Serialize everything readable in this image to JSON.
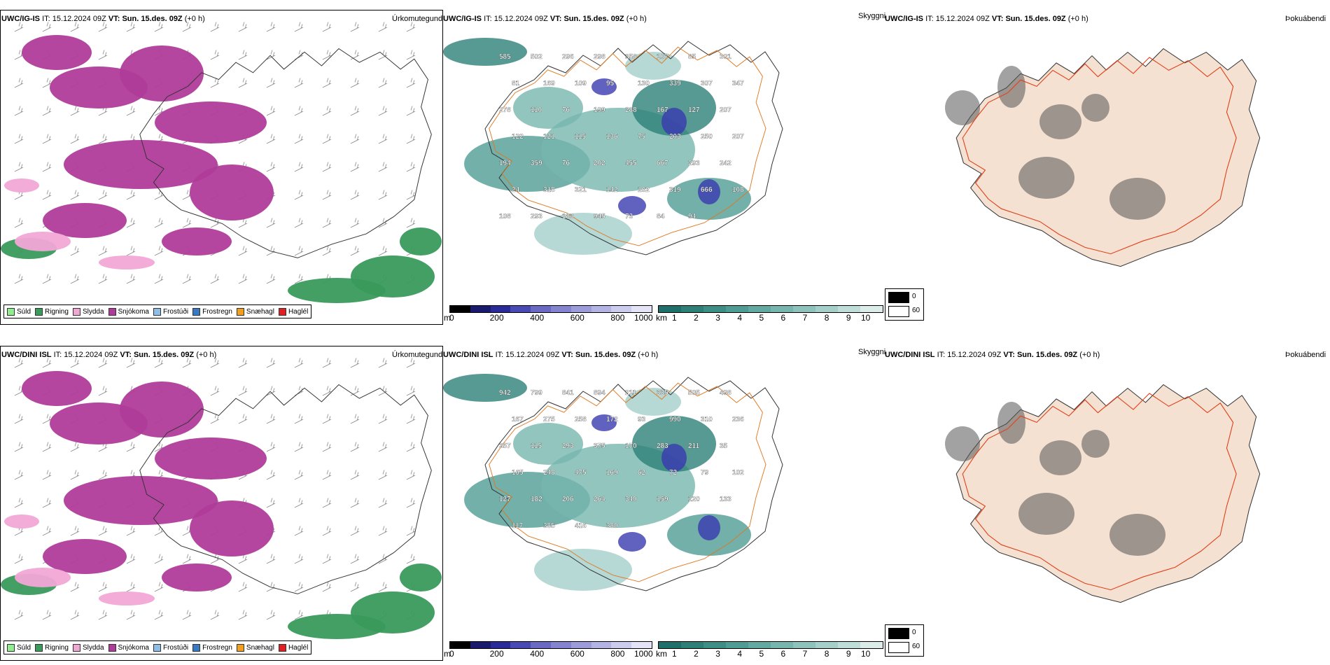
{
  "rows": [
    {
      "precip": {
        "model": "UWC/IG-IS",
        "it_label": "IT:",
        "it_value": "15.12.2024 09Z",
        "vt_label": "VT:",
        "vt_value": "Sun. 15.des. 09Z",
        "lead": "(+0 h)",
        "title": "Úrkomutegund"
      },
      "visibility": {
        "model": "UWC/IG-IS",
        "it_label": "IT:",
        "it_value": "15.12.2024 09Z",
        "vt_label": "VT:",
        "vt_value": "Sun. 15.des. 09Z",
        "lead": "(+0 h)",
        "title": "Skyggni",
        "labels": [
          "585",
          "502",
          "296",
          "298",
          "358",
          "107",
          "85",
          "301",
          "81",
          "169",
          "109",
          "95",
          "130",
          "339",
          "307",
          "347",
          "278",
          "110",
          "76",
          "199",
          "288",
          "167",
          "127",
          "207",
          "122",
          "121",
          "115",
          "136",
          "75",
          "203",
          "250",
          "207",
          "194",
          "359",
          "76",
          "202",
          "455",
          "667",
          "293",
          "242",
          "24",
          "318",
          "321",
          "142",
          "102",
          "319",
          "666",
          "108",
          "108",
          "293",
          "183",
          "945",
          "73",
          "84",
          "94"
        ]
      },
      "fog": {
        "model": "UWC/IG-IS",
        "it_label": "IT:",
        "it_value": "15.12.2024 09Z",
        "vt_label": "VT:",
        "vt_value": "Sun. 15.des. 09Z",
        "lead": "(+0 h)",
        "title": "Þokuábendi"
      }
    },
    {
      "precip": {
        "model": "UWC/DINI ISL",
        "it_label": "IT:",
        "it_value": "15.12.2024 09Z",
        "vt_label": "VT:",
        "vt_value": "Sun. 15.des. 09Z",
        "lead": "(+0 h)",
        "title": "Úrkomutegund"
      },
      "visibility": {
        "model": "UWC/DINI ISL",
        "it_label": "IT:",
        "it_value": "15.12.2024 09Z",
        "vt_label": "VT:",
        "vt_value": "Sun. 15.des. 09Z",
        "lead": "(+0 h)",
        "title": "Skyggni",
        "labels": [
          "942",
          "799",
          "841",
          "894",
          "211",
          "335",
          "505",
          "498",
          "167",
          "275",
          "258",
          "172",
          "93",
          "990",
          "310",
          "236",
          "357",
          "115",
          "293",
          "375",
          "170",
          "283",
          "211",
          "35",
          "165",
          "248",
          "475",
          "169",
          "62",
          "72",
          "79",
          "102",
          "127",
          "182",
          "206",
          "264",
          "340",
          "159",
          "120",
          "133",
          "117",
          "385",
          "416",
          "380"
        ]
      },
      "fog": {
        "model": "UWC/DINI ISL",
        "it_label": "IT:",
        "it_value": "15.12.2024 09Z",
        "vt_label": "VT:",
        "vt_value": "Sun. 15.des. 09Z",
        "lead": "(+0 h)",
        "title": "Þokuábendi"
      }
    }
  ],
  "precip_legend": [
    {
      "label": "Súld",
      "color": "#90ee90"
    },
    {
      "label": "Rigning",
      "color": "#3a9a5c"
    },
    {
      "label": "Slydda",
      "color": "#f2a6d6"
    },
    {
      "label": "Snjókoma",
      "color": "#b03c9a"
    },
    {
      "label": "Frostúði",
      "color": "#8fbde8"
    },
    {
      "label": "Frostregn",
      "color": "#3a78c2"
    },
    {
      "label": "Snæhagl",
      "color": "#f0a020"
    },
    {
      "label": "Haglél",
      "color": "#e02020"
    }
  ],
  "cloud_scale": {
    "unit": "m",
    "ticks": [
      "0",
      "200",
      "400",
      "600",
      "800",
      "1000"
    ],
    "colors": [
      "#000000",
      "#1a1a6e",
      "#2a2a9a",
      "#4a4ab5",
      "#6a6ac5",
      "#8484d0",
      "#9c9cda",
      "#b4b4e4",
      "#ccccee",
      "#e4e4f6"
    ]
  },
  "vis_scale": {
    "unit": "km",
    "ticks": [
      "1",
      "2",
      "3",
      "4",
      "5",
      "6",
      "7",
      "8",
      "9",
      "10"
    ],
    "colors": [
      "#1f6f6a",
      "#2d7f78",
      "#3d8f86",
      "#4f9c94",
      "#62a9a1",
      "#77b6ae",
      "#8dc3bc",
      "#a5d0ca",
      "#bfddd9",
      "#dcede9"
    ]
  },
  "fog_scale": {
    "ticks": [
      "0",
      "60"
    ],
    "colors": [
      "#000000",
      "#ffffff"
    ]
  }
}
